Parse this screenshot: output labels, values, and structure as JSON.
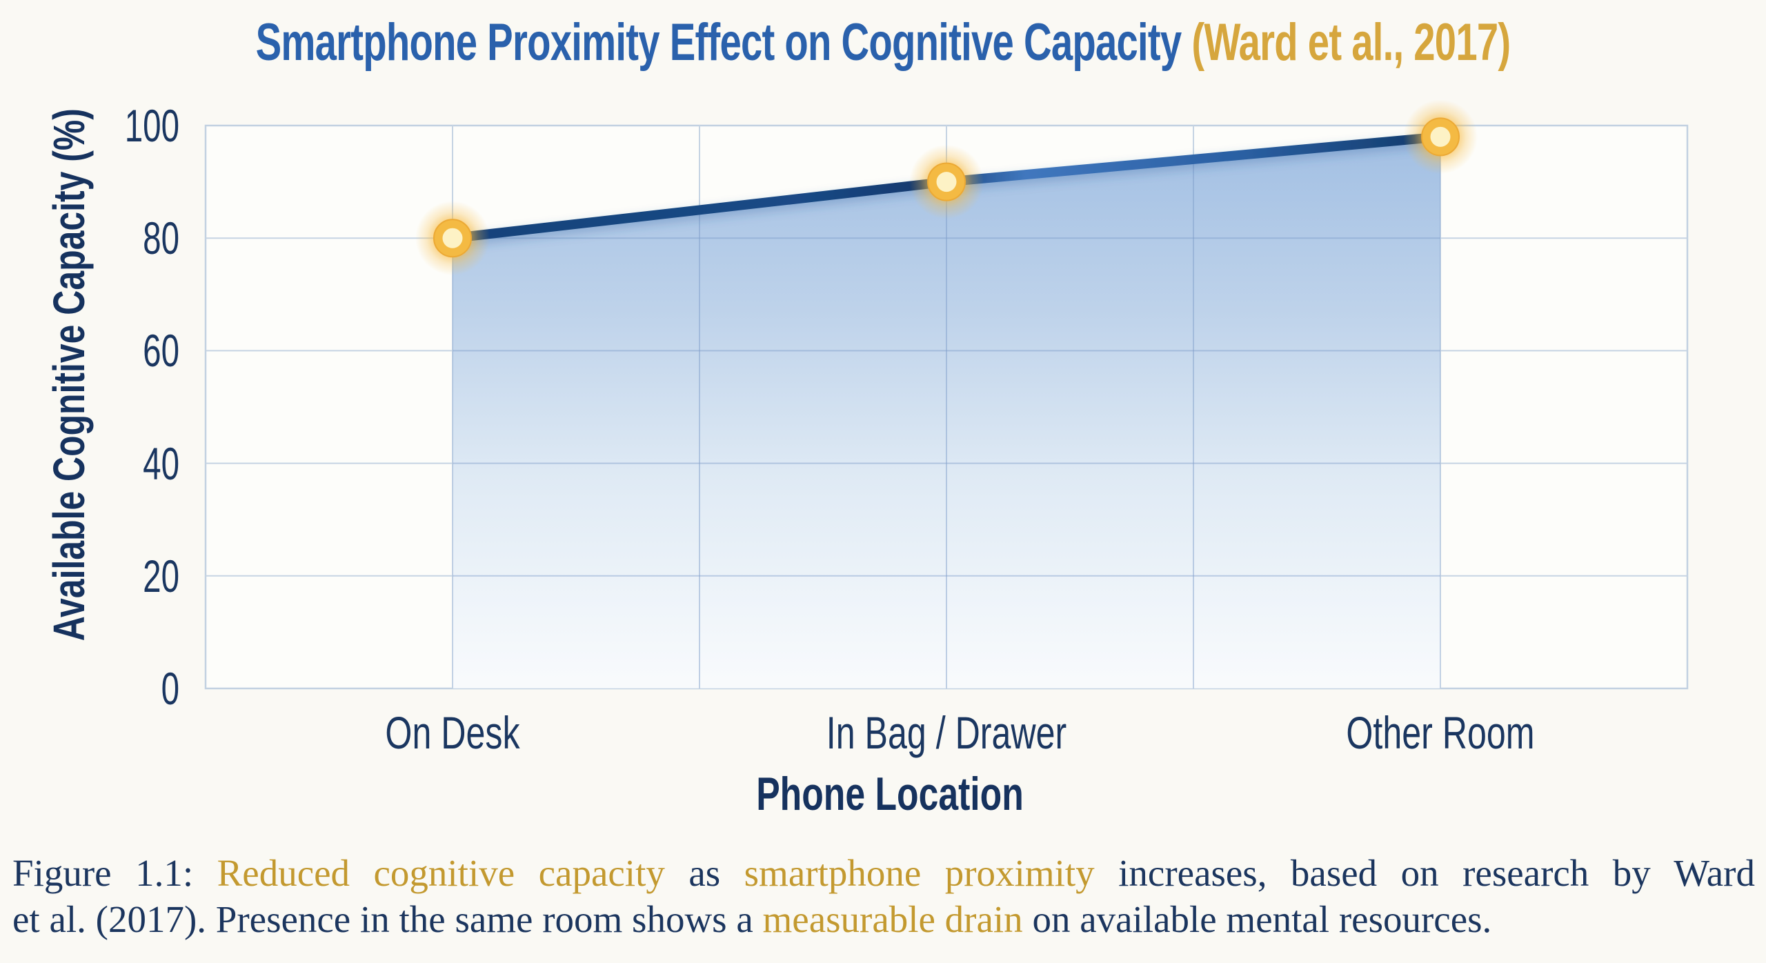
{
  "title": {
    "main": "Smartphone Proximity Effect on Cognitive Capacity",
    "citation": "(Ward et al., 2017)"
  },
  "chart_data": {
    "type": "area",
    "categories": [
      "On Desk",
      "In Bag / Drawer",
      "Other Room"
    ],
    "values": [
      80,
      90,
      98
    ],
    "series_name": "Available Cognitive Capacity",
    "title": "Smartphone Proximity Effect on Cognitive Capacity (Ward et al., 2017)",
    "xlabel": "Phone Location",
    "ylabel": "Available Cognitive Capacity (%)",
    "ylim": [
      0,
      100
    ],
    "yticks": [
      0,
      20,
      40,
      60,
      80,
      100
    ],
    "x_grid_divisions": 6,
    "grid": true,
    "legend_position": "none",
    "marker_style": "gold-glow-ring"
  },
  "caption": {
    "figure_label": "Figure 1.1:",
    "lines": [
      {
        "segments": [
          {
            "text": "Figure 1.1: ",
            "color": "navy"
          },
          {
            "text": "Reduced cognitive capacity",
            "color": "gold"
          },
          {
            "text": " as ",
            "color": "navy"
          },
          {
            "text": "smartphone proximity",
            "color": "gold"
          },
          {
            "text": " increases, based on research by Ward",
            "color": "navy"
          }
        ]
      },
      {
        "segments": [
          {
            "text": "et al. (2017). Presence in the same room shows a ",
            "color": "navy"
          },
          {
            "text": "measurable drain",
            "color": "gold"
          },
          {
            "text": " on available mental resources.",
            "color": "navy"
          }
        ]
      }
    ]
  },
  "colors": {
    "background": "#faf9f4",
    "title_blue": "#2a61ac",
    "title_gold": "#d6a63d",
    "axis_text_navy": "#1a3660",
    "grid_line": "#c6d4e3",
    "grid_line_inner": "#7d9bc8",
    "plot_border": "#c2d1e1",
    "line_navy": "#16417b",
    "line_mid_blue": "#4077be",
    "area_top": "#9dbce2",
    "area_bottom": "#f8fafd",
    "marker_ring_gold": "#f4ba43",
    "marker_center_cream": "#fdf2c5",
    "marker_glow": "#f6b93e",
    "caption_navy": "#1b355e",
    "caption_gold": "#c3992f"
  }
}
